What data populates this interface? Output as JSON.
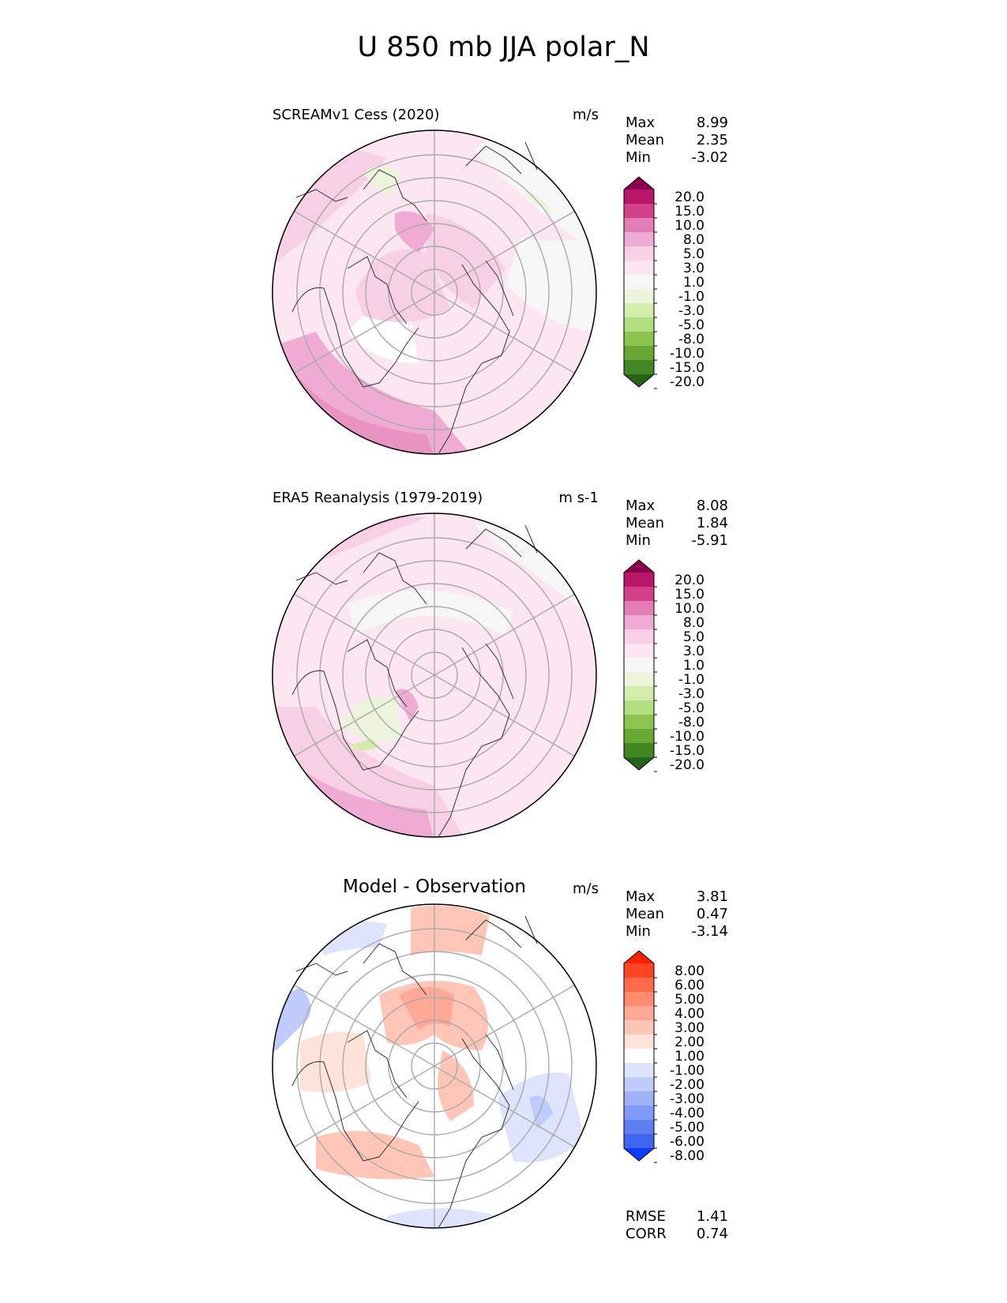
{
  "title": "U 850 mb JJA polar_N",
  "panels": [
    {
      "id": "model",
      "title": "SCREAMv1 Cess (2020)",
      "title_style": "left",
      "units": "m/s",
      "stats": [
        {
          "label": "Max",
          "value": "8.99"
        },
        {
          "label": "Mean",
          "value": "2.35"
        },
        {
          "label": "Min",
          "value": "-3.02"
        }
      ],
      "colorbar": {
        "levels": [
          "20.0",
          "15.0",
          "10.0",
          "8.0",
          "5.0",
          "3.0",
          "1.0",
          "-1.0",
          "-3.0",
          "-5.0",
          "-8.0",
          "-10.0",
          "-15.0",
          "-20.0"
        ],
        "colors": [
          "#8e0152",
          "#b8166a",
          "#d3408a",
          "#e37fb6",
          "#efabd3",
          "#f7d0e6",
          "#fbe6f1",
          "#f6f6f6",
          "#ecf5dc",
          "#d3ecab",
          "#b1de80",
          "#8bc54f",
          "#66a833",
          "#418623",
          "#276419"
        ]
      }
    },
    {
      "id": "obs",
      "title": "ERA5 Reanalysis (1979-2019)",
      "title_style": "left",
      "units": "m s-1",
      "stats": [
        {
          "label": "Max",
          "value": "8.08"
        },
        {
          "label": "Mean",
          "value": "1.84"
        },
        {
          "label": "Min",
          "value": "-5.91"
        }
      ],
      "colorbar": {
        "levels": [
          "20.0",
          "15.0",
          "10.0",
          "8.0",
          "5.0",
          "3.0",
          "1.0",
          "-1.0",
          "-3.0",
          "-5.0",
          "-8.0",
          "-10.0",
          "-15.0",
          "-20.0"
        ],
        "colors": [
          "#8e0152",
          "#b8166a",
          "#d3408a",
          "#e37fb6",
          "#efabd3",
          "#f7d0e6",
          "#fbe6f1",
          "#f6f6f6",
          "#ecf5dc",
          "#d3ecab",
          "#b1de80",
          "#8bc54f",
          "#66a833",
          "#418623",
          "#276419"
        ]
      }
    },
    {
      "id": "diff",
      "title": "Model - Observation",
      "title_style": "center",
      "units": "m/s",
      "stats": [
        {
          "label": "Max",
          "value": "3.81"
        },
        {
          "label": "Mean",
          "value": "0.47"
        },
        {
          "label": "Min",
          "value": "-3.14"
        }
      ],
      "colorbar": {
        "levels": [
          "8.00",
          "6.00",
          "5.00",
          "4.00",
          "3.00",
          "2.00",
          "1.00",
          "-1.00",
          "-2.00",
          "-3.00",
          "-4.00",
          "-5.00",
          "-6.00",
          "-8.00"
        ],
        "colors": [
          "#ff2200",
          "#ff4422",
          "#ff6a4a",
          "#ff8a70",
          "#ffa896",
          "#ffc6b8",
          "#ffe2da",
          "#ffffff",
          "#dee4fc",
          "#bfcbfa",
          "#9fb1f7",
          "#7f97f5",
          "#5f7ef2",
          "#3f64ef",
          "#0b3bff"
        ]
      }
    }
  ],
  "bottom_stats": [
    {
      "label": "RMSE",
      "value": "1.41"
    },
    {
      "label": "CORR",
      "value": "0.74"
    }
  ]
}
